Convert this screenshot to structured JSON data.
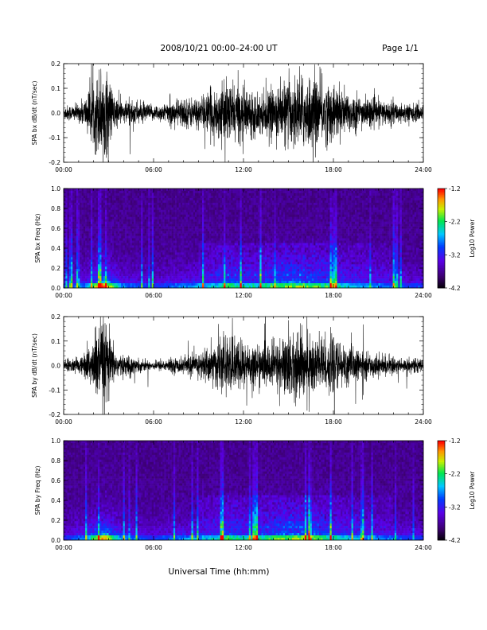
{
  "header": {
    "title": "2008/10/21  00:00–24:00 UT",
    "page": "Page 1/1"
  },
  "xaxis_label": "Universal Time (hh:mm)",
  "chart_data": [
    {
      "id": "bx-dbdt",
      "type": "line",
      "ylabel": "SPA bx dB/dt (nT/sec)",
      "x_ticks": [
        "00:00",
        "06:00",
        "12:00",
        "18:00",
        "24:00"
      ],
      "y_ticks": [
        "0.2",
        "0.1",
        "0.0",
        "-0.1",
        "-0.2"
      ],
      "xlim_hours": [
        0,
        24
      ],
      "ylim": [
        -0.2,
        0.2
      ],
      "amplitude_envelope": {
        "hours": [
          0,
          1,
          1.5,
          2,
          2.3,
          2.6,
          3,
          3.3,
          4,
          4.5,
          5,
          6,
          7,
          8,
          9,
          10,
          11,
          12,
          13,
          14,
          15,
          16,
          17,
          18,
          19,
          20,
          21,
          22,
          23,
          24
        ],
        "amplitude": [
          0.035,
          0.04,
          0.08,
          0.15,
          0.2,
          0.22,
          0.18,
          0.09,
          0.05,
          0.07,
          0.05,
          0.035,
          0.05,
          0.07,
          0.07,
          0.11,
          0.14,
          0.12,
          0.09,
          0.11,
          0.15,
          0.17,
          0.16,
          0.13,
          0.1,
          0.07,
          0.06,
          0.05,
          0.045,
          0.035
        ]
      }
    },
    {
      "id": "bx-freq",
      "type": "heatmap",
      "ylabel": "SPA bx Freq (Hz)",
      "x_ticks": [
        "00:00",
        "06:00",
        "12:00",
        "18:00",
        "24:00"
      ],
      "y_ticks": [
        "1.0",
        "0.8",
        "0.6",
        "0.4",
        "0.2",
        "0.0"
      ],
      "ylim": [
        0,
        1
      ],
      "colorbar": {
        "label": "Log10 Power",
        "ticks": [
          "-1.2",
          "-2.2",
          "-3.2",
          "-4.2"
        ],
        "range": [
          -4.2,
          -1.2
        ]
      }
    },
    {
      "id": "by-dbdt",
      "type": "line",
      "ylabel": "SPA by dB/dt (nT/sec)",
      "x_ticks": [
        "00:00",
        "06:00",
        "12:00",
        "18:00",
        "24:00"
      ],
      "y_ticks": [
        "0.2",
        "0.1",
        "0.0",
        "-0.1",
        "-0.2"
      ],
      "xlim_hours": [
        0,
        24
      ],
      "ylim": [
        -0.2,
        0.2
      ],
      "amplitude_envelope": {
        "hours": [
          0,
          1,
          1.5,
          2,
          2.3,
          2.6,
          3,
          3.3,
          4,
          4.5,
          5,
          6,
          7,
          8,
          9,
          10,
          11,
          12,
          13,
          14,
          15,
          16,
          17,
          18,
          19,
          20,
          21,
          22,
          23,
          24
        ],
        "amplitude": [
          0.03,
          0.035,
          0.07,
          0.13,
          0.2,
          0.22,
          0.17,
          0.08,
          0.04,
          0.05,
          0.03,
          0.02,
          0.03,
          0.04,
          0.06,
          0.1,
          0.13,
          0.12,
          0.09,
          0.11,
          0.15,
          0.16,
          0.15,
          0.12,
          0.09,
          0.06,
          0.05,
          0.04,
          0.035,
          0.03
        ]
      }
    },
    {
      "id": "by-freq",
      "type": "heatmap",
      "ylabel": "SPA by Freq (Hz)",
      "x_ticks": [
        "00:00",
        "06:00",
        "12:00",
        "18:00",
        "24:00"
      ],
      "y_ticks": [
        "1.0",
        "0.8",
        "0.6",
        "0.4",
        "0.2",
        "0.0"
      ],
      "ylim": [
        0,
        1
      ],
      "colorbar": {
        "label": "Log10 Power",
        "ticks": [
          "-1.2",
          "-2.2",
          "-3.2",
          "-4.2"
        ],
        "range": [
          -4.2,
          -1.2
        ]
      }
    }
  ]
}
